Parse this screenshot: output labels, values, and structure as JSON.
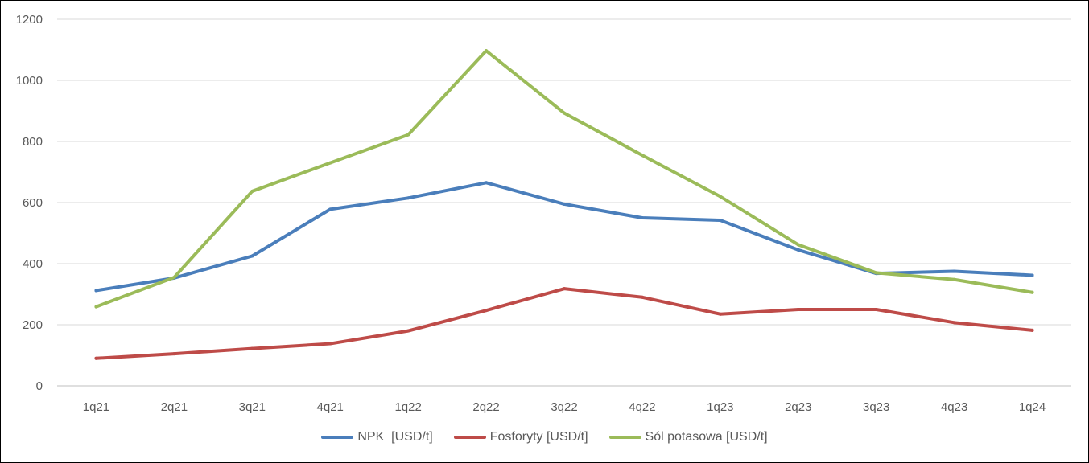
{
  "chart_data": {
    "type": "line",
    "categories": [
      "1q21",
      "2q21",
      "3q21",
      "4q21",
      "1q22",
      "2q22",
      "3q22",
      "4q22",
      "1q23",
      "2q23",
      "3q23",
      "4q23",
      "1q24"
    ],
    "series": [
      {
        "name": "NPK  [USD/t]",
        "color": "#4a7ebb",
        "values": [
          312,
          353,
          425,
          578,
          615,
          665,
          595,
          550,
          542,
          445,
          368,
          375,
          362
        ]
      },
      {
        "name": "Fosforyty [USD/t]",
        "color": "#be4b48",
        "values": [
          90,
          105,
          122,
          138,
          180,
          247,
          318,
          290,
          235,
          250,
          250,
          207,
          182
        ]
      },
      {
        "name": "Sól potasowa [USD/t]",
        "color": "#9bbb59",
        "values": [
          259,
          355,
          637,
          730,
          822,
          1097,
          893,
          755,
          620,
          462,
          370,
          348,
          306
        ]
      }
    ],
    "y_ticks": [
      "0",
      "200",
      "400",
      "600",
      "800",
      "1000",
      "1200"
    ],
    "ylim": [
      0,
      1200
    ],
    "grid": true,
    "legend_position": "bottom"
  }
}
